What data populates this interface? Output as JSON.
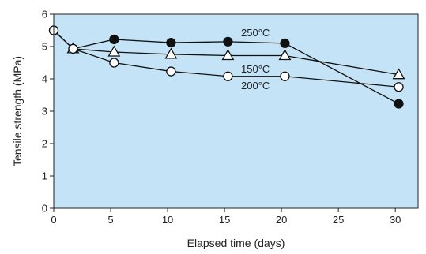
{
  "chart_data": {
    "type": "line",
    "xlabel": "Elapsed time (days)",
    "ylabel": "Tensile strength (MPa)",
    "xlim": [
      0,
      32
    ],
    "ylim": [
      0,
      6
    ],
    "xticks": [
      0,
      5,
      10,
      15,
      20,
      25,
      30
    ],
    "yticks": [
      0,
      1,
      2,
      3,
      4,
      5,
      6
    ],
    "grid": false,
    "plot_background": "#c5e3f6",
    "series": [
      {
        "name": "250°C",
        "marker": "filled-circle",
        "x": [
          0,
          1.7,
          5.3,
          10.3,
          15.3,
          20.3,
          30.3
        ],
        "y": [
          5.5,
          4.93,
          5.22,
          5.12,
          5.15,
          5.1,
          3.23
        ]
      },
      {
        "name": "150°C",
        "marker": "open-triangle",
        "x": [
          1.7,
          5.3,
          10.3,
          15.3,
          20.3,
          30.3
        ],
        "y": [
          4.93,
          4.83,
          4.76,
          4.72,
          4.72,
          4.13
        ]
      },
      {
        "name": "200°C",
        "marker": "open-circle",
        "x": [
          0,
          1.7,
          5.3,
          10.3,
          15.3,
          20.3,
          30.3
        ],
        "y": [
          5.5,
          4.93,
          4.5,
          4.23,
          4.08,
          4.08,
          3.75
        ]
      }
    ]
  }
}
